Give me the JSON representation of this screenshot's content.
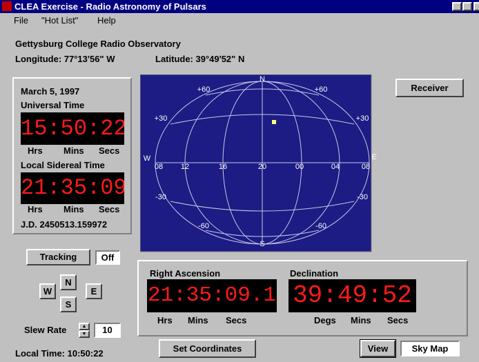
{
  "window": {
    "title": "CLEA Exercise - Radio Astronomy of Pulsars"
  },
  "menu": [
    "File",
    "\"Hot List\"",
    "Help"
  ],
  "observatory": {
    "name": "Gettysburg College Radio Observatory",
    "longitude": "Longitude:  77°13'56\" W",
    "latitude": "Latitude:  39°49'52\" N"
  },
  "time_panel": {
    "date": "March 5, 1997",
    "ut_label": "Universal Time",
    "ut": "15:50:22",
    "ut_units": [
      "Hrs",
      "Mins",
      "Secs"
    ],
    "lst_label": "Local Sidereal Time",
    "lst": "21:35:09",
    "lst_units": [
      "Hrs",
      "Mins",
      "Secs"
    ],
    "jd": "J.D. 2450513.159972"
  },
  "sky_map": {
    "north": "N",
    "south": "S",
    "east": "E",
    "west": "W",
    "dec_labels": [
      "+60",
      "+60",
      "+30",
      "+30",
      "-30",
      "-30",
      "-60",
      "-60"
    ],
    "ra_labels": [
      "08",
      "12",
      "16",
      "20",
      "00",
      "04",
      "08"
    ]
  },
  "buttons": {
    "receiver": "Receiver",
    "tracking": "Tracking",
    "tracking_state": "Off",
    "north": "N",
    "west": "W",
    "east": "E",
    "south": "S",
    "set_coordinates": "Set Coordinates",
    "view": "View",
    "view_mode": "Sky Map"
  },
  "slew": {
    "label": "Slew Rate",
    "value": "10"
  },
  "local_time": "Local Time: 10:50:22",
  "coordinates": {
    "ra_label": "Right Ascension",
    "ra": "21:35:09.1",
    "ra_units": [
      "Hrs",
      "Mins",
      "Secs"
    ],
    "dec_label": "Declination",
    "dec": "39:49:52",
    "dec_units": [
      "Degs",
      "Mins",
      "Secs"
    ]
  }
}
